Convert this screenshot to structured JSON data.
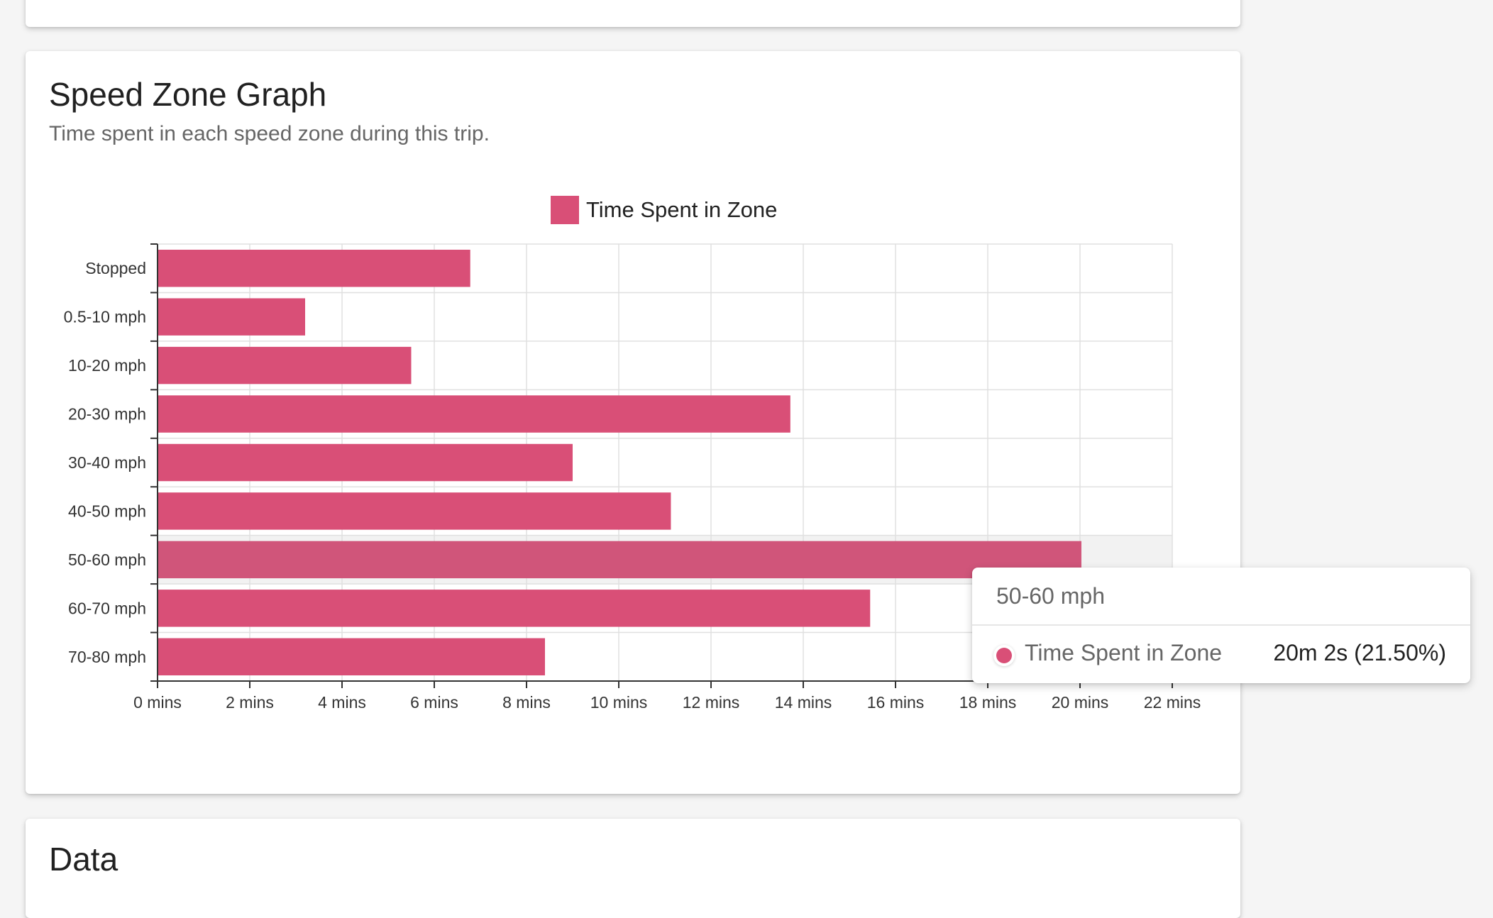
{
  "colors": {
    "bar": "#d94f77",
    "bar_highlight": "#d0557a",
    "highlight_band": "#f2f2f2",
    "grid": "#e0e0e0",
    "axis": "#333333"
  },
  "speed_zone_card": {
    "title": "Speed Zone Graph",
    "subtitle": "Time spent in each speed zone during this trip."
  },
  "data_card": {
    "title": "Data"
  },
  "tooltip": {
    "category": "50-60 mph",
    "series": "Time Spent in Zone",
    "value": "20m 2s (21.50%)"
  },
  "chart_data": {
    "type": "bar",
    "orientation": "horizontal",
    "categories": [
      "Stopped",
      "0.5-10 mph",
      "10-20 mph",
      "20-30 mph",
      "30-40 mph",
      "40-50 mph",
      "50-60 mph",
      "60-70 mph",
      "70-80 mph"
    ],
    "series": [
      {
        "name": "Time Spent in Zone",
        "values": [
          6.78,
          3.2,
          5.5,
          13.72,
          9.0,
          11.13,
          20.03,
          15.45,
          8.4
        ]
      }
    ],
    "x_unit": "mins",
    "xlim": [
      0,
      22
    ],
    "xticks": [
      0,
      2,
      4,
      6,
      8,
      10,
      12,
      14,
      16,
      18,
      20,
      22
    ],
    "xtick_labels": [
      "0 mins",
      "2 mins",
      "4 mins",
      "6 mins",
      "8 mins",
      "10 mins",
      "12 mins",
      "14 mins",
      "16 mins",
      "18 mins",
      "20 mins",
      "22 mins"
    ],
    "grid": true,
    "legend": "top-center",
    "highlighted_category": "50-60 mph"
  }
}
